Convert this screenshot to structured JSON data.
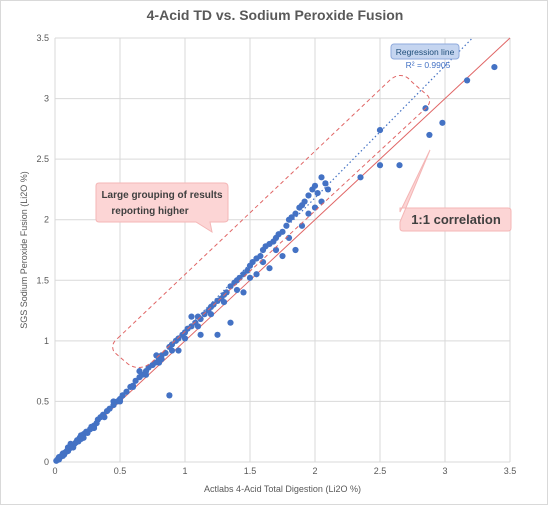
{
  "chart_data": {
    "type": "scatter",
    "title": "4-Acid TD vs. Sodium Peroxide Fusion",
    "xlabel": "Actlabs 4-Acid Total Digestion (Li2O %)",
    "ylabel": "SGS Sodium Peroxide Fusion (Li2O %)",
    "xlim": [
      0,
      3.5
    ],
    "ylim": [
      0,
      3.5
    ],
    "xticks": [
      "0",
      "0.5",
      "1",
      "1.5",
      "2",
      "2.5",
      "3",
      "3.5"
    ],
    "yticks": [
      "0",
      "0.5",
      "1",
      "1.5",
      "2",
      "2.5",
      "3",
      "3.5"
    ],
    "grid": true,
    "colors": {
      "points": "#4472c4",
      "one_to_one": "#e06666",
      "regression": "#4472c4",
      "callout_fill": "#fcd5d5"
    },
    "series": [
      {
        "points": [
          [
            0.01,
            0.01
          ],
          [
            0.02,
            0.02
          ],
          [
            0.03,
            0.02
          ],
          [
            0.03,
            0.04
          ],
          [
            0.04,
            0.04
          ],
          [
            0.05,
            0.05
          ],
          [
            0.06,
            0.05
          ],
          [
            0.06,
            0.07
          ],
          [
            0.07,
            0.06
          ],
          [
            0.08,
            0.08
          ],
          [
            0.09,
            0.09
          ],
          [
            0.1,
            0.09
          ],
          [
            0.1,
            0.12
          ],
          [
            0.11,
            0.11
          ],
          [
            0.12,
            0.12
          ],
          [
            0.13,
            0.13
          ],
          [
            0.14,
            0.12
          ],
          [
            0.15,
            0.15
          ],
          [
            0.16,
            0.16
          ],
          [
            0.17,
            0.18
          ],
          [
            0.18,
            0.17
          ],
          [
            0.19,
            0.2
          ],
          [
            0.2,
            0.19
          ],
          [
            0.2,
            0.22
          ],
          [
            0.22,
            0.23
          ],
          [
            0.24,
            0.25
          ],
          [
            0.25,
            0.24
          ],
          [
            0.27,
            0.27
          ],
          [
            0.28,
            0.29
          ],
          [
            0.3,
            0.3
          ],
          [
            0.32,
            0.32
          ],
          [
            0.33,
            0.35
          ],
          [
            0.35,
            0.37
          ],
          [
            0.37,
            0.39
          ],
          [
            0.38,
            0.37
          ],
          [
            0.4,
            0.42
          ],
          [
            0.42,
            0.44
          ],
          [
            0.45,
            0.47
          ],
          [
            0.48,
            0.5
          ],
          [
            0.5,
            0.52
          ],
          [
            0.52,
            0.55
          ],
          [
            0.55,
            0.58
          ],
          [
            0.58,
            0.62
          ],
          [
            0.6,
            0.63
          ],
          [
            0.62,
            0.67
          ],
          [
            0.65,
            0.7
          ],
          [
            0.67,
            0.72
          ],
          [
            0.7,
            0.75
          ],
          [
            0.72,
            0.78
          ],
          [
            0.75,
            0.8
          ],
          [
            0.77,
            0.82
          ],
          [
            0.8,
            0.85
          ],
          [
            0.82,
            0.88
          ],
          [
            0.85,
            0.9
          ],
          [
            0.88,
            0.95
          ],
          [
            0.9,
            0.97
          ],
          [
            0.93,
            1.0
          ],
          [
            0.95,
            1.02
          ],
          [
            0.98,
            1.05
          ],
          [
            1.0,
            1.07
          ],
          [
            1.02,
            1.1
          ],
          [
            1.05,
            1.12
          ],
          [
            1.08,
            1.15
          ],
          [
            1.1,
            1.2
          ],
          [
            1.12,
            1.18
          ],
          [
            1.15,
            1.22
          ],
          [
            1.18,
            1.25
          ],
          [
            1.2,
            1.28
          ],
          [
            1.22,
            1.3
          ],
          [
            1.25,
            1.33
          ],
          [
            1.28,
            1.35
          ],
          [
            1.3,
            1.38
          ],
          [
            1.32,
            1.4
          ],
          [
            1.35,
            1.45
          ],
          [
            1.38,
            1.48
          ],
          [
            1.4,
            1.5
          ],
          [
            1.42,
            1.52
          ],
          [
            1.45,
            1.55
          ],
          [
            1.48,
            1.58
          ],
          [
            1.5,
            1.62
          ],
          [
            1.52,
            1.65
          ],
          [
            1.55,
            1.68
          ],
          [
            1.58,
            1.7
          ],
          [
            1.6,
            1.75
          ],
          [
            1.62,
            1.78
          ],
          [
            1.65,
            1.8
          ],
          [
            1.68,
            1.82
          ],
          [
            1.7,
            1.85
          ],
          [
            1.72,
            1.88
          ],
          [
            1.75,
            1.9
          ],
          [
            1.78,
            1.95
          ],
          [
            1.8,
            2.0
          ],
          [
            1.82,
            2.02
          ],
          [
            1.85,
            2.05
          ],
          [
            1.88,
            2.1
          ],
          [
            1.9,
            2.12
          ],
          [
            1.92,
            2.15
          ],
          [
            1.95,
            2.2
          ],
          [
            1.98,
            2.25
          ],
          [
            2.0,
            2.28
          ],
          [
            2.02,
            2.22
          ],
          [
            2.05,
            2.35
          ],
          [
            2.08,
            2.3
          ],
          [
            2.1,
            2.25
          ],
          [
            2.0,
            2.1
          ],
          [
            1.9,
            1.95
          ],
          [
            1.8,
            1.85
          ],
          [
            1.7,
            1.75
          ],
          [
            1.6,
            1.65
          ],
          [
            1.5,
            1.52
          ],
          [
            1.4,
            1.42
          ],
          [
            1.3,
            1.32
          ],
          [
            1.2,
            1.22
          ],
          [
            1.1,
            1.12
          ],
          [
            1.0,
            1.02
          ],
          [
            0.9,
            0.92
          ],
          [
            0.8,
            0.82
          ],
          [
            0.7,
            0.72
          ],
          [
            0.6,
            0.62
          ],
          [
            0.5,
            0.5
          ],
          [
            2.5,
            2.74
          ],
          [
            2.5,
            2.45
          ],
          [
            2.65,
            2.45
          ],
          [
            2.85,
            2.92
          ],
          [
            2.88,
            2.7
          ],
          [
            2.98,
            2.8
          ],
          [
            3.17,
            3.15
          ],
          [
            3.38,
            3.26
          ],
          [
            2.35,
            2.35
          ],
          [
            0.88,
            0.55
          ],
          [
            0.82,
            0.85
          ],
          [
            0.78,
            0.88
          ],
          [
            1.05,
            1.2
          ],
          [
            1.25,
            1.05
          ],
          [
            1.35,
            1.15
          ],
          [
            1.55,
            1.55
          ],
          [
            1.65,
            1.6
          ],
          [
            1.75,
            1.7
          ],
          [
            1.85,
            1.75
          ],
          [
            1.12,
            1.05
          ],
          [
            0.95,
            0.92
          ],
          [
            1.45,
            1.4
          ],
          [
            1.95,
            2.05
          ],
          [
            2.05,
            2.15
          ],
          [
            0.65,
            0.75
          ],
          [
            0.45,
            0.5
          ],
          [
            0.3,
            0.28
          ],
          [
            0.22,
            0.2
          ],
          [
            0.12,
            0.15
          ]
        ]
      }
    ],
    "one_to_one_line": {
      "x": [
        0,
        3.5
      ],
      "y": [
        0,
        3.5
      ]
    },
    "regression_line": {
      "slope": 1.09,
      "intercept": 0.0,
      "r2_text": "R² = 0.9905"
    },
    "annotations": {
      "regression_label": "Regression line",
      "large_grouping": "Large grouping of results reporting higher",
      "one_to_one_label": "1:1 correlation"
    }
  }
}
